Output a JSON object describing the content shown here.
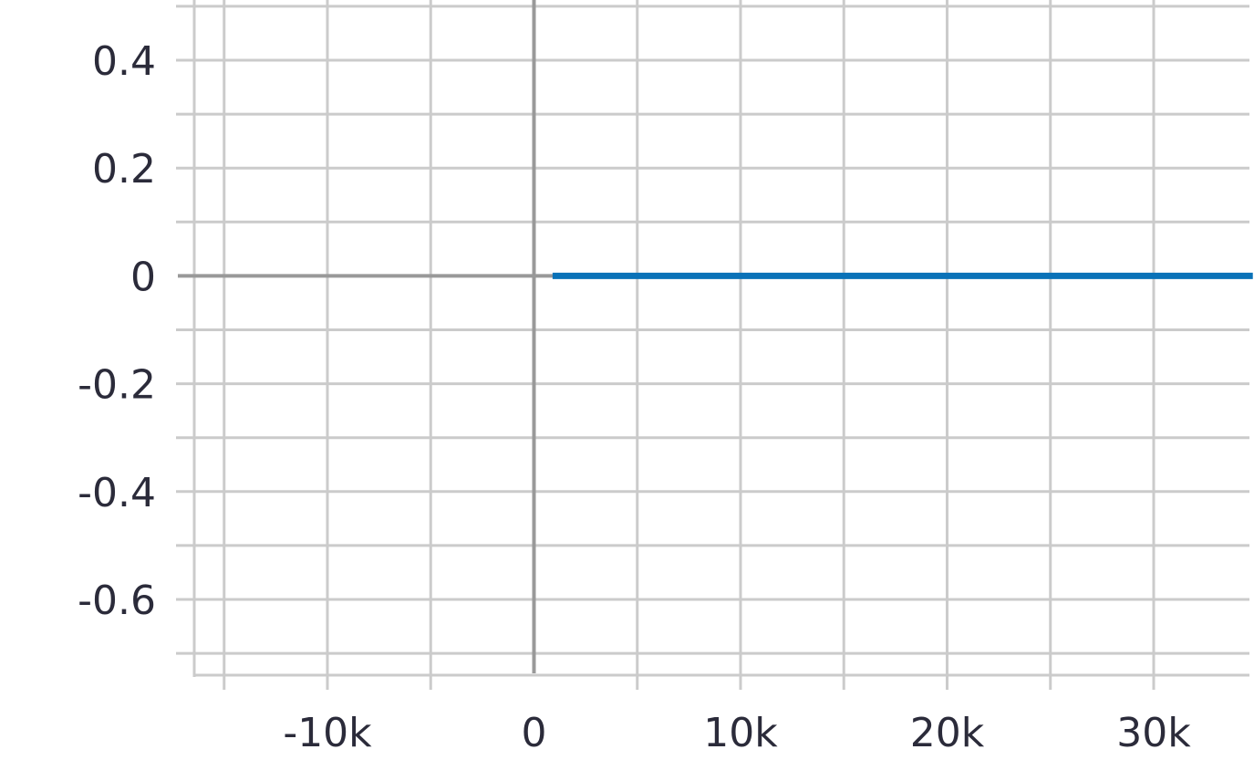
{
  "chart_data": {
    "type": "line",
    "title": "",
    "xlabel": "",
    "ylabel": "",
    "xlim": [
      -16500,
      34800
    ],
    "ylim": [
      -0.7,
      0.5
    ],
    "x_ticks": [
      -10000,
      0,
      10000,
      20000,
      30000
    ],
    "x_tick_labels": [
      "-10k",
      "0",
      "10k",
      "20k",
      "30k"
    ],
    "x_minor_ticks": [
      -15000,
      -5000,
      5000,
      15000,
      25000
    ],
    "y_ticks": [
      0.4,
      0.2,
      0,
      -0.2,
      -0.4,
      -0.6
    ],
    "y_tick_labels": [
      "0.4",
      "0.2",
      "0",
      "-0.2",
      "-0.4",
      "-0.6"
    ],
    "y_minor_ticks": [
      0.5,
      0.3,
      0.1,
      -0.1,
      -0.3,
      -0.5,
      -0.7
    ],
    "grid": true,
    "series": [
      {
        "x": [
          900,
          34800
        ],
        "y": [
          0,
          0
        ],
        "color": "#0a72b8"
      }
    ]
  },
  "colors": {
    "grid": "#cbcbcb",
    "axis": "#999999",
    "text": "#2b2b3a",
    "line": "#0a72b8"
  }
}
